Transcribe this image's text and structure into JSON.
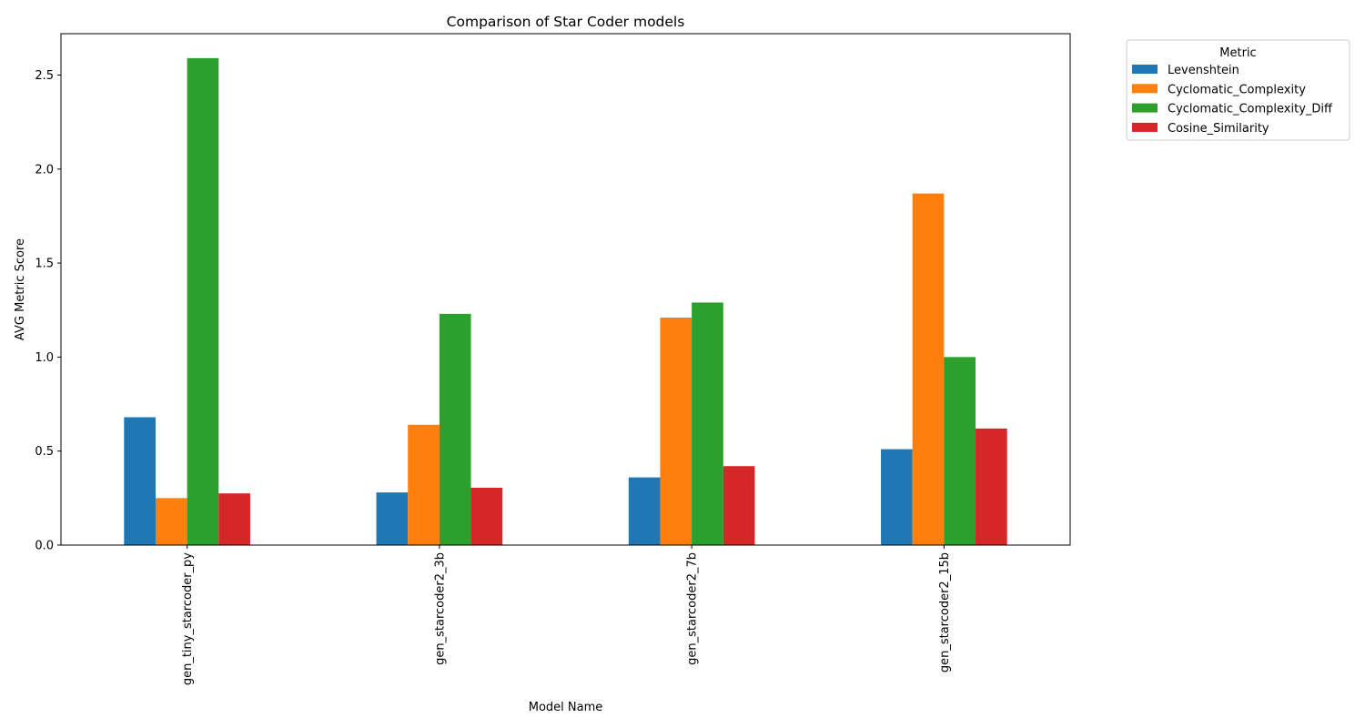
{
  "chart_data": {
    "type": "bar",
    "title": "Comparison of Star Coder models",
    "xlabel": "Model Name",
    "ylabel": "AVG Metric Score",
    "categories": [
      "gen_tiny_starcoder_py",
      "gen_starcoder2_3b",
      "gen_starcoder2_7b",
      "gen_starcoder2_15b"
    ],
    "series": [
      {
        "name": "Levenshtein",
        "color": "#1f77b4",
        "values": [
          0.68,
          0.28,
          0.36,
          0.51
        ]
      },
      {
        "name": "Cyclomatic_Complexity",
        "color": "#ff7f0e",
        "values": [
          0.25,
          0.64,
          1.21,
          1.87
        ]
      },
      {
        "name": "Cyclomatic_Complexity_Diff",
        "color": "#2ca02c",
        "values": [
          2.59,
          1.23,
          1.29,
          1.0
        ]
      },
      {
        "name": "Cosine_Similarity",
        "color": "#d62728",
        "values": [
          0.275,
          0.305,
          0.42,
          0.62
        ]
      }
    ],
    "ylim": [
      0,
      2.72
    ],
    "yticks": [
      "0.0",
      "0.5",
      "1.0",
      "1.5",
      "2.0",
      "2.5"
    ],
    "grid": false,
    "legend": {
      "title": "Metric",
      "placement": "outside-top-right"
    }
  }
}
